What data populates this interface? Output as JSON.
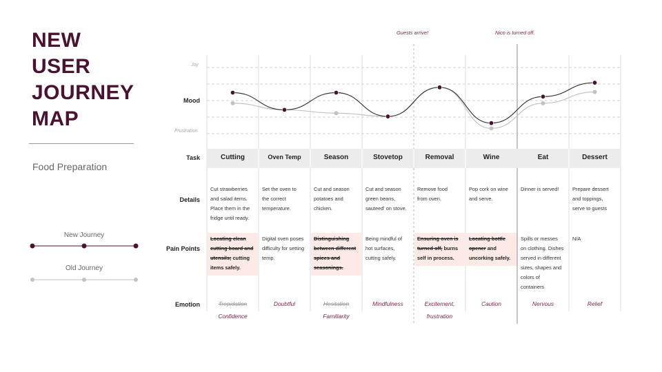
{
  "title_lines": [
    "NEW",
    "USER",
    "JOURNEY",
    "MAP"
  ],
  "subtitle": "Food Preparation",
  "legend": {
    "new": "New Journey",
    "old": "Old Journey"
  },
  "colors": {
    "new": "#4a1130",
    "old": "#c2c2c2",
    "pain_bg": "#fdeae6",
    "task_bg": "#ececec",
    "accent": "#7a1f4a"
  },
  "row_labels": {
    "mood": "Mood",
    "task": "Task",
    "details": "Details",
    "pain": "Pain Points",
    "emotion": "Emotion"
  },
  "axis_words": {
    "top": "Joy",
    "bottom": "Frustration"
  },
  "annotations": {
    "guests": "Guests arrive!",
    "nico": "Nico is turned off."
  },
  "stages": [
    {
      "task": "Cutting",
      "details": [
        "Cut strawberries",
        "and salad items.",
        "Place them in the",
        "fridge until ready."
      ],
      "pain_struck": "Locating clean cutting board and utensils;",
      "pain_rest": " cutting items safely.",
      "pain_lines": [
        "Locating clean",
        "cutting board and",
        "utensils; cutting",
        "items safely."
      ],
      "pain_struck_chars": 45,
      "emotion_old": "Trepidation",
      "emotion_new": "Confidence"
    },
    {
      "task": "Oven Temp",
      "details": [
        "Set the oven to",
        "the correct",
        "temperature."
      ],
      "pain_plain_lines": [
        "Digital oven poses",
        "difficulty for setting",
        "temp."
      ],
      "emotion_new": "Doubtful"
    },
    {
      "task": "Season",
      "details": [
        "Cut and season",
        "potatoes and",
        "chicken."
      ],
      "pain_lines": [
        "Distinguishing",
        "between different",
        "spices and",
        "seasonings."
      ],
      "emotion_old": "Hesitation",
      "emotion_new": "Familiarity"
    },
    {
      "task": "Stovetop",
      "details": [
        "Cut and season",
        "green beans,",
        "sauteed' on stove."
      ],
      "pain_plain_lines": [
        "Being mindful of",
        "hot surfaces,",
        "cutting safely."
      ],
      "emotion_new": "Mindfulness"
    },
    {
      "task": "Removal",
      "details": [
        "Remove food",
        "from oven."
      ],
      "pain_lines": [
        "Ensuring oven is",
        "turned off, burns",
        "self in process."
      ],
      "emotion_new": "Excitement,",
      "emotion_new2": "frustration"
    },
    {
      "task": "Wine",
      "details": [
        "Pop cork on wine",
        "and serve."
      ],
      "pain_lines": [
        "Locating bottle",
        "opener and",
        "uncorking safely."
      ],
      "emotion_new": "Caution"
    },
    {
      "task": "Eat",
      "details": [
        "Dinner is served!"
      ],
      "pain_plain_lines": [
        "Spills or messes",
        "on clothing. Dishes",
        "served in different",
        "sizes, shapes and",
        "colors of",
        "containers"
      ],
      "emotion_new": "Nervous"
    },
    {
      "task": "Dessert",
      "details": [
        "Prepare dessert",
        "and toppings,",
        "serve to guests"
      ],
      "pain_plain_lines": [
        "N/A"
      ],
      "emotion_new": "Relief"
    }
  ],
  "chart_data": {
    "type": "line",
    "categories": [
      "Cutting",
      "Oven Temp",
      "Season",
      "Stovetop",
      "Removal",
      "Wine",
      "Eat",
      "Dessert"
    ],
    "ylabel": "Mood",
    "y_axis_labels": [
      "Joy",
      "Frustration"
    ],
    "ylim": [
      0,
      10
    ],
    "series": [
      {
        "name": "New Journey",
        "values": [
          6.2,
          3.6,
          6.2,
          2.6,
          7.0,
          1.6,
          5.6,
          7.7
        ],
        "extra_point": 5.6
      },
      {
        "name": "Old Journey",
        "values": [
          4.6,
          3.6,
          3.1,
          2.6,
          7.0,
          0.8,
          4.6,
          6.3
        ]
      }
    ]
  }
}
